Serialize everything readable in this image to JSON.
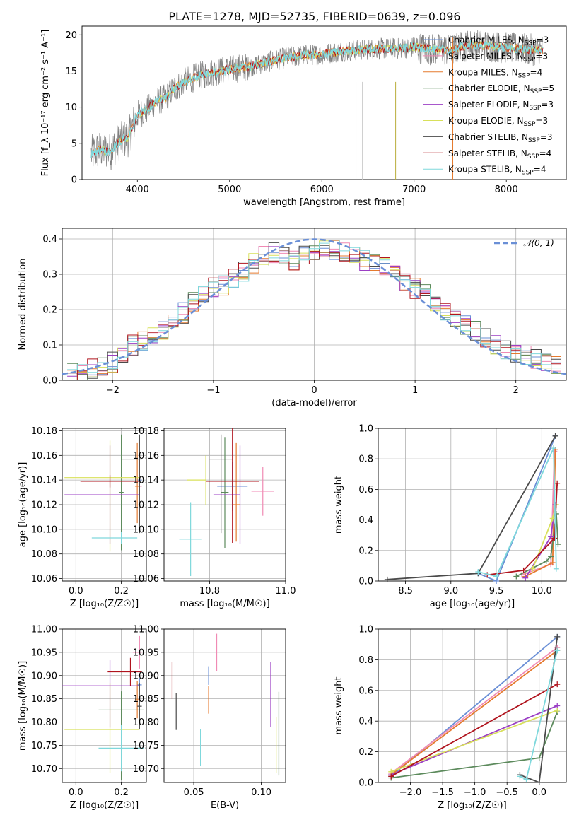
{
  "figure_title": "PLATE=1278, MJD=52735, FIBERID=0639, z=0.096",
  "colors": {
    "dashed_normal": "#6a8fd6",
    "grid": "#b0b0b0"
  },
  "models": [
    {
      "name": "Chabrier MILES",
      "nssp": "3",
      "color": "#6a8fd6"
    },
    {
      "name": "Salpeter MILES",
      "nssp": "3",
      "color": "#f08ab4"
    },
    {
      "name": "Kroupa MILES",
      "nssp": "4",
      "color": "#e57a2e"
    },
    {
      "name": "Chabrier ELODIE",
      "nssp": "5",
      "color": "#5c8a5c"
    },
    {
      "name": "Salpeter ELODIE",
      "nssp": "3",
      "color": "#9b3fc4"
    },
    {
      "name": "Kroupa ELODIE",
      "nssp": "3",
      "color": "#d8e05a"
    },
    {
      "name": "Chabrier STELIB",
      "nssp": "3",
      "color": "#4a4a4a"
    },
    {
      "name": "Salpeter STELIB",
      "nssp": "4",
      "color": "#b0141e"
    },
    {
      "name": "Kroupa STELIB",
      "nssp": "4",
      "color": "#7fd8dc"
    }
  ],
  "chart_data": [
    {
      "type": "line",
      "panel": "spectrum",
      "xlabel": "wavelength [Angstrom, rest frame]",
      "ylabel": "Flux [f_λ 10⁻¹⁷ erg cm⁻² s⁻¹ A⁻¹]",
      "xlim": [
        3400,
        8650
      ],
      "ylim": [
        0,
        21.2
      ],
      "xticks": [
        "4000",
        "5000",
        "6000",
        "7000",
        "8000"
      ],
      "yticks": [
        "0",
        "5",
        "10",
        "15",
        "20"
      ],
      "grid": false,
      "legend": "top-right",
      "data_color": "#808080",
      "spectrum_continuum": {
        "x": [
          3500,
          3600,
          3700,
          3800,
          3900,
          4000,
          4100,
          4200,
          4300,
          4400,
          4500,
          4600,
          4800,
          5000,
          5200,
          5400,
          5600,
          5800,
          6000,
          6200,
          6400,
          6600,
          6800,
          7000,
          7200,
          7400,
          7600,
          7800,
          8000,
          8200,
          8400
        ],
        "y": [
          3.5,
          4.2,
          3.8,
          5.2,
          5.8,
          9.0,
          9.6,
          10.8,
          11.2,
          12.6,
          13.4,
          14.0,
          14.8,
          15.2,
          15.6,
          16.2,
          16.8,
          17.2,
          17.3,
          17.7,
          17.9,
          18.1,
          18.1,
          18.3,
          18.0,
          17.9,
          18.6,
          18.5,
          18.2,
          18.0,
          17.8
        ]
      }
    },
    {
      "type": "line",
      "panel": "residual-histogram",
      "xlabel": "(data-model)/error",
      "ylabel": "Normed distribution",
      "xlim": [
        -2.5,
        2.5
      ],
      "ylim": [
        0,
        0.43
      ],
      "xticks": [
        "−2",
        "−1",
        "0",
        "1",
        "2"
      ],
      "yticks": [
        "0.0",
        "0.1",
        "0.2",
        "0.3",
        "0.4"
      ],
      "grid": true,
      "legend": "top-right",
      "reference_curve": {
        "name": "𝒩(0, 1)",
        "mu": 0,
        "sigma": 1
      },
      "bins": [
        -2.4,
        -2.3,
        -2.2,
        -2.1,
        -2.0,
        -1.9,
        -1.8,
        -1.7,
        -1.6,
        -1.5,
        -1.4,
        -1.3,
        -1.2,
        -1.1,
        -1.0,
        -0.9,
        -0.8,
        -0.7,
        -0.6,
        -0.5,
        -0.4,
        -0.3,
        -0.2,
        -0.1,
        0.0,
        0.1,
        0.2,
        0.3,
        0.4,
        0.5,
        0.6,
        0.7,
        0.8,
        0.9,
        1.0,
        1.1,
        1.2,
        1.3,
        1.4,
        1.5,
        1.6,
        1.7,
        1.8,
        1.9,
        2.0,
        2.1,
        2.2,
        2.3,
        2.4
      ],
      "histogram_mean": [
        0.022,
        0.028,
        0.035,
        0.042,
        0.05,
        0.075,
        0.1,
        0.11,
        0.125,
        0.14,
        0.16,
        0.19,
        0.22,
        0.24,
        0.26,
        0.27,
        0.29,
        0.31,
        0.33,
        0.35,
        0.36,
        0.35,
        0.34,
        0.35,
        0.36,
        0.37,
        0.37,
        0.36,
        0.35,
        0.34,
        0.33,
        0.32,
        0.3,
        0.28,
        0.26,
        0.25,
        0.22,
        0.2,
        0.18,
        0.16,
        0.14,
        0.12,
        0.1,
        0.09,
        0.08,
        0.07,
        0.06,
        0.05,
        0.04
      ]
    },
    {
      "type": "scatter",
      "panel": "age-vs-Z",
      "xlabel": "Z [log₁₀(Z/Z☉)]",
      "ylabel": "age  [log₁₀(age/yr)]",
      "xlim": [
        -0.06,
        0.31
      ],
      "ylim": [
        10.058,
        10.182
      ],
      "xticks": [
        "0.0",
        "0.2"
      ],
      "yticks": [
        "10.06",
        "10.08",
        "10.10",
        "10.12",
        "10.14",
        "10.16",
        "10.18"
      ],
      "grid": true,
      "series": [
        {
          "model": 0,
          "x": 0.28,
          "y": 10.14,
          "xerr": [
            0.01,
            0.01
          ],
          "yerr": [
            0.02,
            0.02
          ]
        },
        {
          "model": 1,
          "x": 0.28,
          "y": 10.135,
          "xerr": [
            0.01,
            0.01
          ],
          "yerr": [
            0.03,
            0.03
          ]
        },
        {
          "model": 2,
          "x": 0.27,
          "y": 10.135,
          "xerr": [
            0.01,
            0.01
          ],
          "yerr": [
            0.03,
            0.035
          ]
        },
        {
          "model": 3,
          "x": 0.2,
          "y": 10.13,
          "xerr": [
            0.01,
            0.01
          ],
          "yerr": [
            0.047,
            0.047
          ]
        },
        {
          "model": 4,
          "x": 0.15,
          "y": 10.128,
          "xerr": [
            0.2,
            0.13
          ],
          "yerr": [
            0.04,
            0.04
          ]
        },
        {
          "model": 5,
          "x": 0.15,
          "y": 10.142,
          "xerr": [
            0.2,
            0.13
          ],
          "yerr": [
            0.06,
            0.03
          ]
        },
        {
          "model": 6,
          "x": 0.28,
          "y": 10.157,
          "xerr": [
            0.08,
            0.01
          ],
          "yerr": [
            0.06,
            0.02
          ]
        },
        {
          "model": 7,
          "x": 0.15,
          "y": 10.139,
          "xerr": [
            0.13,
            0.13
          ],
          "yerr": [
            0.005,
            0.005
          ]
        },
        {
          "model": 8,
          "x": 0.2,
          "y": 10.093,
          "xerr": [
            0.13,
            0.07
          ],
          "yerr": [
            0.005,
            0.005
          ]
        }
      ]
    },
    {
      "type": "scatter",
      "panel": "age-vs-mass",
      "xlabel": "mass [log₁₀(M/M☉)]",
      "ylabel": "",
      "xlim": [
        10.68,
        11.0
      ],
      "ylim": [
        10.058,
        10.182
      ],
      "xticks": [
        "10.8",
        "11.0"
      ],
      "yticks": [
        "10.06",
        "10.08",
        "10.10",
        "10.12",
        "10.14",
        "10.16",
        "10.18"
      ],
      "grid": true,
      "series": [
        {
          "model": 0,
          "x": 10.86,
          "y": 10.135,
          "xerr": [
            0.04,
            0.04
          ],
          "yerr": [
            0.02,
            0.02
          ]
        },
        {
          "model": 1,
          "x": 10.94,
          "y": 10.131,
          "xerr": [
            0.03,
            0.03
          ],
          "yerr": [
            0.02,
            0.02
          ]
        },
        {
          "model": 2,
          "x": 10.87,
          "y": 10.12,
          "xerr": [
            0.01,
            0.01
          ],
          "yerr": [
            0.03,
            0.05
          ]
        },
        {
          "model": 3,
          "x": 10.84,
          "y": 10.13,
          "xerr": [
            0.01,
            0.01
          ],
          "yerr": [
            0.045,
            0.045
          ]
        },
        {
          "model": 4,
          "x": 10.88,
          "y": 10.128,
          "xerr": [
            0.07,
            0.0
          ],
          "yerr": [
            0.04,
            0.04
          ]
        },
        {
          "model": 5,
          "x": 10.79,
          "y": 10.14,
          "xerr": [
            0.05,
            0.0
          ],
          "yerr": [
            0.02,
            0.02
          ]
        },
        {
          "model": 6,
          "x": 10.83,
          "y": 10.157,
          "xerr": [
            0.03,
            0.03
          ],
          "yerr": [
            0.06,
            0.02
          ]
        },
        {
          "model": 7,
          "x": 10.86,
          "y": 10.139,
          "xerr": [
            0.07,
            0.07
          ],
          "yerr": [
            0.05,
            0.05
          ]
        },
        {
          "model": 8,
          "x": 10.75,
          "y": 10.092,
          "xerr": [
            0.03,
            0.03
          ],
          "yerr": [
            0.03,
            0.03
          ]
        }
      ]
    },
    {
      "type": "line",
      "panel": "mass-weight-vs-age",
      "xlabel": "age  [log₁₀(age/yr)]",
      "ylabel": "mass weight",
      "xlim": [
        8.2,
        10.27
      ],
      "ylim": [
        0,
        1.0
      ],
      "xticks": [
        "8.5",
        "9.0",
        "9.5",
        "10.0"
      ],
      "yticks": [
        "0.0",
        "0.2",
        "0.4",
        "0.6",
        "0.8",
        "1.0"
      ],
      "grid": true,
      "series": [
        {
          "model": 0,
          "x": [
            9.3,
            9.5,
            10.15
          ],
          "y": [
            0.05,
            0.0,
            0.95
          ]
        },
        {
          "model": 1,
          "x": [
            9.78,
            10.1,
            10.14
          ],
          "y": [
            0.04,
            0.11,
            0.85
          ]
        },
        {
          "model": 2,
          "x": [
            9.82,
            10.12,
            10.15
          ],
          "y": [
            0.03,
            0.12,
            0.86
          ]
        },
        {
          "model": 3,
          "x": [
            9.72,
            10.05,
            10.1,
            10.16,
            10.18
          ],
          "y": [
            0.03,
            0.13,
            0.16,
            0.44,
            0.24
          ]
        },
        {
          "model": 4,
          "x": [
            9.82,
            10.1,
            10.15
          ],
          "y": [
            0.02,
            0.29,
            0.5
          ]
        },
        {
          "model": 5,
          "x": [
            9.9,
            10.12,
            10.16
          ],
          "y": [
            0.08,
            0.41,
            0.5
          ]
        },
        {
          "model": 6,
          "x": [
            8.3,
            9.3,
            10.15
          ],
          "y": [
            0.01,
            0.05,
            0.95
          ]
        },
        {
          "model": 7,
          "x": [
            9.4,
            9.8,
            10.14,
            10.17
          ],
          "y": [
            0.04,
            0.07,
            0.28,
            0.64
          ]
        },
        {
          "model": 8,
          "x": [
            9.3,
            9.5,
            10.13,
            10.16
          ],
          "y": [
            0.06,
            0.03,
            0.87,
            0.08
          ]
        }
      ]
    },
    {
      "type": "scatter",
      "panel": "mass-vs-Z",
      "xlabel": "Z [log₁₀(Z/Z☉)]",
      "ylabel": "mass [log₁₀(M/M☉)]",
      "xlim": [
        -0.06,
        0.31
      ],
      "ylim": [
        10.67,
        11.0
      ],
      "xticks": [
        "0.0",
        "0.2"
      ],
      "yticks": [
        "10.70",
        "10.75",
        "10.80",
        "10.85",
        "10.90",
        "10.95",
        "11.00"
      ],
      "grid": true,
      "series": [
        {
          "model": 0,
          "x": 0.28,
          "y": 10.88,
          "xerr": [
            0.01,
            0.01
          ],
          "yerr": [
            0.015,
            0.015
          ]
        },
        {
          "model": 1,
          "x": 0.28,
          "y": 10.95,
          "xerr": [
            0.03,
            0.01
          ],
          "yerr": [
            0.035,
            0.035
          ]
        },
        {
          "model": 2,
          "x": 0.27,
          "y": 10.848,
          "xerr": [
            0.01,
            0.01
          ],
          "yerr": [
            0.04,
            0.04
          ]
        },
        {
          "model": 3,
          "x": 0.2,
          "y": 10.826,
          "xerr": [
            0.1,
            0.1
          ],
          "yerr": [
            0.15,
            0.04
          ]
        },
        {
          "model": 4,
          "x": 0.15,
          "y": 10.878,
          "xerr": [
            0.21,
            0.13
          ],
          "yerr": [
            0.09,
            0.055
          ]
        },
        {
          "model": 5,
          "x": 0.15,
          "y": 10.784,
          "xerr": [
            0.2,
            0.13
          ],
          "yerr": [
            0.094,
            0.1
          ]
        },
        {
          "model": 6,
          "x": 0.28,
          "y": 10.834,
          "xerr": [
            0.01,
            0.01
          ],
          "yerr": [
            0.05,
            0.05
          ]
        },
        {
          "model": 7,
          "x": 0.24,
          "y": 10.908,
          "xerr": [
            0.1,
            0.05
          ],
          "yerr": [
            0.03,
            0.03
          ]
        },
        {
          "model": 8,
          "x": 0.2,
          "y": 10.744,
          "xerr": [
            0.1,
            0.1
          ],
          "yerr": [
            0.05,
            0.05
          ]
        }
      ]
    },
    {
      "type": "scatter",
      "panel": "mass-vs-ebv",
      "xlabel": "E(B-V)",
      "ylabel": "",
      "xlim": [
        0.028,
        0.118
      ],
      "ylim": [
        10.67,
        11.0
      ],
      "xticks": [
        "0.05",
        "0.10"
      ],
      "yticks": [
        "10.70",
        "10.75",
        "10.80",
        "10.85",
        "10.90",
        "10.95",
        "11.00"
      ],
      "grid": true,
      "series": [
        {
          "model": 0,
          "x": 0.061,
          "y": 10.9,
          "xerr": [
            0,
            0
          ],
          "yerr": [
            0.02,
            0.02
          ]
        },
        {
          "model": 1,
          "x": 0.067,
          "y": 10.95,
          "xerr": [
            0,
            0
          ],
          "yerr": [
            0.04,
            0.04
          ]
        },
        {
          "model": 2,
          "x": 0.061,
          "y": 10.848,
          "xerr": [
            0,
            0
          ],
          "yerr": [
            0.03,
            0.03
          ]
        },
        {
          "model": 3,
          "x": 0.113,
          "y": 10.775,
          "xerr": [
            0,
            0
          ],
          "yerr": [
            0.09,
            0.09
          ]
        },
        {
          "model": 4,
          "x": 0.107,
          "y": 10.86,
          "xerr": [
            0,
            0
          ],
          "yerr": [
            0.07,
            0.07
          ]
        },
        {
          "model": 5,
          "x": 0.111,
          "y": 10.75,
          "xerr": [
            0,
            0
          ],
          "yerr": [
            0.06,
            0.06
          ]
        },
        {
          "model": 6,
          "x": 0.037,
          "y": 10.823,
          "xerr": [
            0,
            0
          ],
          "yerr": [
            0.04,
            0.04
          ]
        },
        {
          "model": 7,
          "x": 0.034,
          "y": 10.89,
          "xerr": [
            0,
            0
          ],
          "yerr": [
            0.04,
            0.04
          ]
        },
        {
          "model": 8,
          "x": 0.055,
          "y": 10.745,
          "xerr": [
            0,
            0
          ],
          "yerr": [
            0.04,
            0.04
          ]
        }
      ]
    },
    {
      "type": "line",
      "panel": "mass-weight-vs-Z",
      "xlabel": "Z [log₁₀(Z/Z☉)]",
      "ylabel": "mass weight",
      "xlim": [
        -2.5,
        0.42
      ],
      "ylim": [
        0,
        1.0
      ],
      "xticks": [
        "−2.0",
        "−1.5",
        "−1.0",
        "−0.5",
        "0.0"
      ],
      "yticks": [
        "0.0",
        "0.2",
        "0.4",
        "0.6",
        "0.8",
        "1.0"
      ],
      "grid": true,
      "series": [
        {
          "model": 0,
          "x": [
            -2.3,
            0.28
          ],
          "y": [
            0.04,
            0.95
          ]
        },
        {
          "model": 1,
          "x": [
            -2.3,
            0.28
          ],
          "y": [
            0.06,
            0.88
          ]
        },
        {
          "model": 2,
          "x": [
            -2.3,
            0.28
          ],
          "y": [
            0.05,
            0.86
          ]
        },
        {
          "model": 3,
          "x": [
            -2.3,
            0.0,
            0.28
          ],
          "y": [
            0.03,
            0.16,
            0.46
          ]
        },
        {
          "model": 4,
          "x": [
            -2.3,
            0.28
          ],
          "y": [
            0.05,
            0.5
          ]
        },
        {
          "model": 5,
          "x": [
            -2.3,
            0.28
          ],
          "y": [
            0.07,
            0.47
          ]
        },
        {
          "model": 6,
          "x": [
            -0.3,
            0.0,
            0.28
          ],
          "y": [
            0.05,
            0.0,
            0.95
          ]
        },
        {
          "model": 7,
          "x": [
            -2.3,
            0.28
          ],
          "y": [
            0.04,
            0.64
          ]
        },
        {
          "model": 8,
          "x": [
            -0.3,
            -0.2,
            0.28
          ],
          "y": [
            0.04,
            0.02,
            0.86
          ]
        }
      ]
    }
  ]
}
